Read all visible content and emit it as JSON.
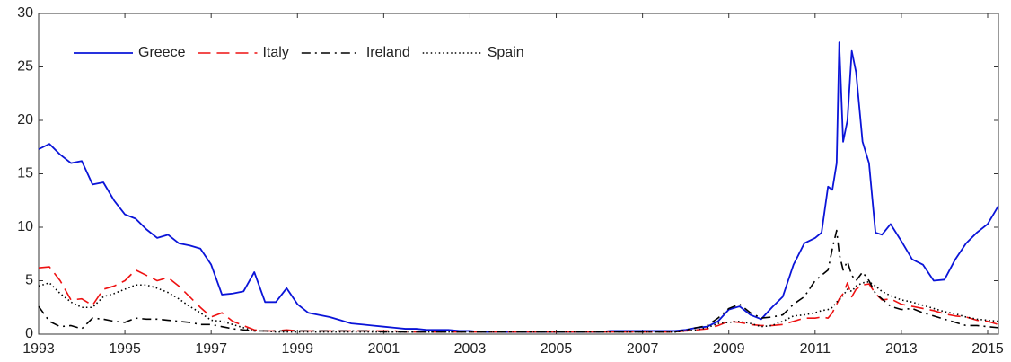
{
  "chart_data": {
    "type": "line",
    "x": [
      1993,
      1993.25,
      1993.5,
      1993.75,
      1994,
      1994.25,
      1994.5,
      1994.75,
      1995,
      1995.25,
      1995.5,
      1995.75,
      1996,
      1996.25,
      1996.5,
      1996.75,
      1997,
      1997.25,
      1997.5,
      1997.75,
      1998,
      1998.25,
      1998.5,
      1998.75,
      1999,
      1999.25,
      1999.5,
      1999.75,
      2000,
      2000.25,
      2000.5,
      2000.75,
      2001,
      2001.25,
      2001.5,
      2001.75,
      2002,
      2002.25,
      2002.5,
      2002.75,
      2003,
      2003.25,
      2003.5,
      2003.75,
      2004,
      2004.25,
      2004.5,
      2004.75,
      2005,
      2005.25,
      2005.5,
      2005.75,
      2006,
      2006.25,
      2006.5,
      2006.75,
      2007,
      2007.25,
      2007.5,
      2007.75,
      2008,
      2008.25,
      2008.5,
      2008.75,
      2009,
      2009.25,
      2009.5,
      2009.75,
      2010,
      2010.25,
      2010.5,
      2010.75,
      2011,
      2011.15,
      2011.3,
      2011.4,
      2011.5,
      2011.56,
      2011.65,
      2011.75,
      2011.85,
      2011.95,
      2012.1,
      2012.25,
      2012.4,
      2012.55,
      2012.75,
      2013,
      2013.25,
      2013.5,
      2013.75,
      2014,
      2014.25,
      2014.5,
      2014.75,
      2015,
      2015.25
    ],
    "series": [
      {
        "name": "Greece",
        "color": "#0a14d8",
        "linestyle": "solid",
        "values": [
          17.3,
          17.8,
          16.8,
          16.0,
          16.2,
          14.0,
          14.2,
          12.5,
          11.2,
          10.8,
          9.8,
          9.0,
          9.3,
          8.5,
          8.3,
          8.0,
          6.5,
          3.7,
          3.8,
          4.0,
          5.8,
          3.0,
          3.0,
          4.3,
          2.8,
          2.0,
          1.8,
          1.6,
          1.3,
          1.0,
          0.9,
          0.8,
          0.7,
          0.6,
          0.5,
          0.5,
          0.4,
          0.4,
          0.4,
          0.3,
          0.3,
          0.2,
          0.2,
          0.2,
          0.2,
          0.2,
          0.2,
          0.2,
          0.2,
          0.2,
          0.2,
          0.2,
          0.2,
          0.3,
          0.3,
          0.3,
          0.3,
          0.3,
          0.3,
          0.3,
          0.4,
          0.6,
          0.7,
          1.2,
          2.3,
          2.6,
          1.8,
          1.4,
          2.5,
          3.5,
          6.5,
          8.5,
          9,
          9.5,
          13.8,
          13.5,
          16,
          27.3,
          18,
          20,
          26.5,
          24.5,
          18,
          16,
          9.5,
          9.3,
          10.3,
          8.7,
          7,
          6.5,
          5,
          5.1,
          7,
          8.5,
          9.5,
          10.3,
          12
        ]
      },
      {
        "name": "Italy",
        "color": "#ee1111",
        "linestyle": "dashed",
        "values": [
          6.2,
          6.3,
          5.0,
          3.2,
          3.3,
          2.7,
          4.2,
          4.5,
          5.0,
          6.0,
          5.5,
          5.0,
          5.3,
          4.5,
          3.5,
          2.5,
          1.6,
          2.0,
          1.2,
          0.8,
          0.4,
          0.3,
          0.3,
          0.4,
          0.3,
          0.3,
          0.3,
          0.3,
          0.3,
          0.3,
          0.3,
          0.3,
          0.3,
          0.3,
          0.2,
          0.2,
          0.2,
          0.2,
          0.2,
          0.2,
          0.2,
          0.2,
          0.2,
          0.2,
          0.2,
          0.2,
          0.2,
          0.2,
          0.2,
          0.2,
          0.2,
          0.2,
          0.2,
          0.2,
          0.2,
          0.2,
          0.2,
          0.2,
          0.2,
          0.2,
          0.3,
          0.4,
          0.5,
          0.8,
          1.2,
          1.1,
          0.9,
          0.8,
          0.8,
          0.9,
          1.2,
          1.5,
          1.5,
          1.6,
          1.5,
          2.0,
          2.8,
          3.3,
          3.8,
          4.8,
          3.5,
          4.2,
          4.6,
          4.7,
          3.8,
          3.2,
          3.3,
          2.8,
          2.6,
          2.4,
          2.2,
          1.9,
          1.7,
          1.6,
          1.3,
          1.2,
          0.9
        ]
      },
      {
        "name": "Ireland",
        "color": "#000000",
        "linestyle": "dashdot",
        "values": [
          2.6,
          1.2,
          0.7,
          0.8,
          0.5,
          1.5,
          1.4,
          1.2,
          1.1,
          1.5,
          1.4,
          1.4,
          1.3,
          1.2,
          1.1,
          0.9,
          0.9,
          0.7,
          0.5,
          0.4,
          0.3,
          0.3,
          0.3,
          0.3,
          0.3,
          0.3,
          0.3,
          0.3,
          0.3,
          0.3,
          0.3,
          0.3,
          0.2,
          0.2,
          0.2,
          0.2,
          0.2,
          0.2,
          0.2,
          0.2,
          0.2,
          0.2,
          0.2,
          0.2,
          0.2,
          0.2,
          0.2,
          0.2,
          0.2,
          0.2,
          0.2,
          0.2,
          0.2,
          0.2,
          0.2,
          0.2,
          0.2,
          0.2,
          0.2,
          0.2,
          0.4,
          0.6,
          0.8,
          1.5,
          2.4,
          2.8,
          2.0,
          1.5,
          1.6,
          1.8,
          2.8,
          3.5,
          5.0,
          5.5,
          6.0,
          8.0,
          9.7,
          7.5,
          6.0,
          6.8,
          5.5,
          5.0,
          5.8,
          5.0,
          3.8,
          3.3,
          2.6,
          2.3,
          2.4,
          2.0,
          1.7,
          1.4,
          1.1,
          0.8,
          0.8,
          0.7,
          0.6
        ]
      },
      {
        "name": "Spain",
        "color": "#000000",
        "linestyle": "dotted",
        "values": [
          4.5,
          4.8,
          3.8,
          3.0,
          2.5,
          2.5,
          3.5,
          3.8,
          4.2,
          4.6,
          4.6,
          4.3,
          3.9,
          3.3,
          2.6,
          2.0,
          1.3,
          1.2,
          0.9,
          0.6,
          0.3,
          0.3,
          0.2,
          0.2,
          0.2,
          0.2,
          0.2,
          0.2,
          0.2,
          0.2,
          0.2,
          0.2,
          0.2,
          0.2,
          0.2,
          0.2,
          0.2,
          0.2,
          0.2,
          0.2,
          0.2,
          0.2,
          0.2,
          0.2,
          0.2,
          0.2,
          0.2,
          0.2,
          0.2,
          0.2,
          0.2,
          0.2,
          0.2,
          0.2,
          0.2,
          0.2,
          0.2,
          0.2,
          0.2,
          0.2,
          0.3,
          0.4,
          0.6,
          1.0,
          1.1,
          1.2,
          1.0,
          0.7,
          0.8,
          1.2,
          1.7,
          1.8,
          2.0,
          2.2,
          2.3,
          2.5,
          3.0,
          3.2,
          3.6,
          4.2,
          4.0,
          4.5,
          4.8,
          4.9,
          4.5,
          4.0,
          3.6,
          3.2,
          3.0,
          2.7,
          2.4,
          2.1,
          1.9,
          1.6,
          1.4,
          1.3,
          1.2
        ]
      }
    ],
    "xlim": [
      1993,
      2015.25
    ],
    "ylim": [
      0,
      30
    ],
    "xticks": [
      1993,
      1995,
      1997,
      1999,
      2001,
      2003,
      2005,
      2007,
      2009,
      2011,
      2013,
      2015
    ],
    "yticks": [
      0,
      5,
      10,
      15,
      20,
      25,
      30
    ],
    "grid": false,
    "legend": "upper left"
  }
}
